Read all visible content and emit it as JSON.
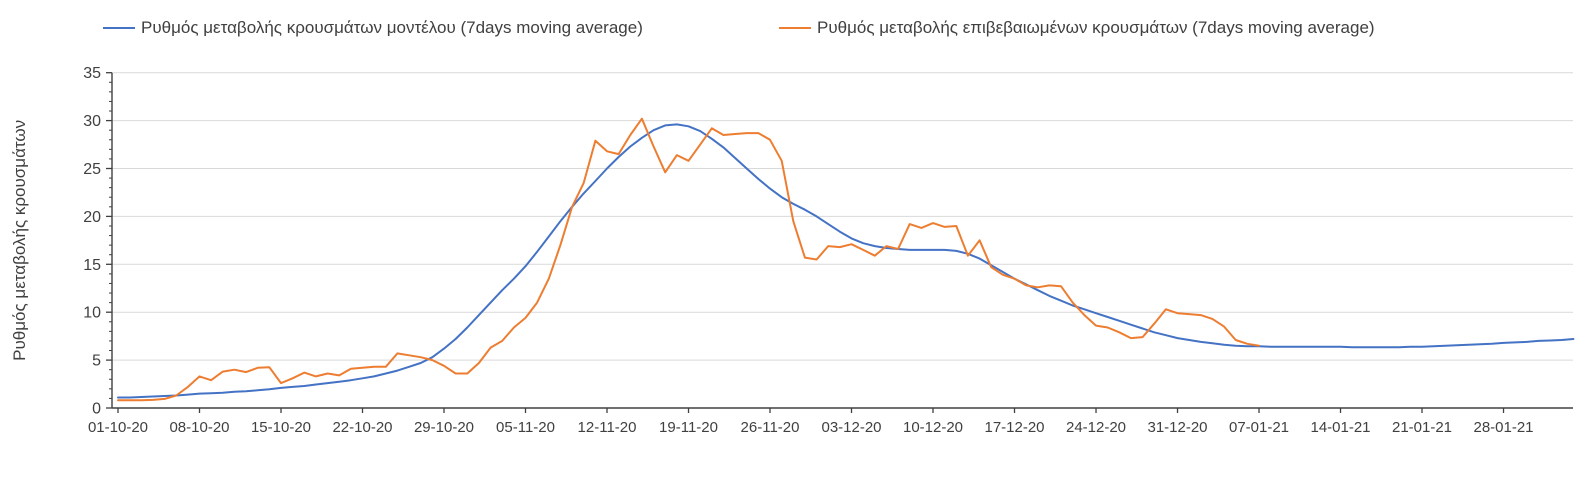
{
  "colors": {
    "background": "#FFFFFF",
    "axis": "#404040",
    "grid": "#D9D9D9",
    "text": "#404040",
    "model_line": "#4472C4",
    "confirmed_line": "#ED7D31"
  },
  "chart_data": {
    "type": "line",
    "title": "",
    "xlabel": "",
    "ylabel": "Ρυθμός μεταβολής κρουσμάτων",
    "ylim": [
      0,
      35
    ],
    "y_ticks": [
      0,
      5,
      10,
      15,
      20,
      25,
      30,
      35
    ],
    "y_minor_tick_step": 1,
    "grid": "horizontal-major-only",
    "legend_position": "top",
    "x_unit": "daily dates",
    "x_start_label": "01-10-20",
    "x_tick_interval_days": 7,
    "x_tick_labels": [
      "01-10-20",
      "08-10-20",
      "15-10-20",
      "22-10-20",
      "29-10-20",
      "05-11-20",
      "12-11-20",
      "19-11-20",
      "26-11-20",
      "03-12-20",
      "10-12-20",
      "17-12-20",
      "24-12-20",
      "31-12-20",
      "07-01-21",
      "14-01-21",
      "21-01-21",
      "28-01-21"
    ],
    "series": [
      {
        "name": "Ρυθμός μεταβολής κρουσμάτων μοντέλου (7days moving average)",
        "color": "#4472C4",
        "start_date": "01-10-20",
        "end_date": "03-02-21",
        "values": [
          1.1,
          1.1,
          1.15,
          1.2,
          1.25,
          1.3,
          1.4,
          1.5,
          1.55,
          1.6,
          1.7,
          1.75,
          1.85,
          1.95,
          2.1,
          2.2,
          2.3,
          2.45,
          2.6,
          2.75,
          2.9,
          3.1,
          3.3,
          3.6,
          3.9,
          4.3,
          4.7,
          5.3,
          6.2,
          7.2,
          8.4,
          9.7,
          11.0,
          12.3,
          13.5,
          14.8,
          16.3,
          17.9,
          19.5,
          21.0,
          22.4,
          23.7,
          25.0,
          26.2,
          27.3,
          28.2,
          29.0,
          29.5,
          29.6,
          29.4,
          28.9,
          28.1,
          27.2,
          26.1,
          25.0,
          23.9,
          22.9,
          22.0,
          21.3,
          20.7,
          20.0,
          19.2,
          18.4,
          17.7,
          17.2,
          16.9,
          16.7,
          16.6,
          16.5,
          16.5,
          16.5,
          16.5,
          16.4,
          16.1,
          15.6,
          14.9,
          14.2,
          13.5,
          12.9,
          12.3,
          11.7,
          11.2,
          10.7,
          10.3,
          9.9,
          9.5,
          9.1,
          8.7,
          8.3,
          7.9,
          7.6,
          7.3,
          7.1,
          6.9,
          6.75,
          6.6,
          6.5,
          6.45,
          6.45,
          6.4,
          6.4,
          6.4,
          6.4,
          6.4,
          6.4,
          6.4,
          6.35,
          6.35,
          6.35,
          6.35,
          6.35,
          6.4,
          6.4,
          6.45,
          6.5,
          6.55,
          6.6,
          6.65,
          6.7,
          6.8,
          6.85,
          6.9,
          7.0,
          7.05,
          7.1,
          7.2
        ]
      },
      {
        "name": "Ρυθμός μεταβολής επιβεβαιωμένων κρουσμάτων (7days moving average)",
        "color": "#ED7D31",
        "start_date": "01-10-20",
        "end_date": "07-01-21",
        "values": [
          0.8,
          0.8,
          0.8,
          0.85,
          0.95,
          1.3,
          2.2,
          3.3,
          2.9,
          3.8,
          4.0,
          3.75,
          4.2,
          4.25,
          2.6,
          3.1,
          3.7,
          3.3,
          3.6,
          3.4,
          4.1,
          4.2,
          4.3,
          4.3,
          5.7,
          5.5,
          5.3,
          5.0,
          4.4,
          3.6,
          3.6,
          4.7,
          6.3,
          7.0,
          8.4,
          9.4,
          11.0,
          13.5,
          17.0,
          21.0,
          23.5,
          27.9,
          26.8,
          26.5,
          28.5,
          30.2,
          27.3,
          24.6,
          26.4,
          25.8,
          27.5,
          29.2,
          28.5,
          28.6,
          28.7,
          28.7,
          28.0,
          25.8,
          19.5,
          15.7,
          15.5,
          16.9,
          16.8,
          17.1,
          16.5,
          15.9,
          16.9,
          16.6,
          19.2,
          18.8,
          19.3,
          18.9,
          19.0,
          15.9,
          17.5,
          14.7,
          13.9,
          13.5,
          12.8,
          12.6,
          12.8,
          12.7,
          11.0,
          9.7,
          8.6,
          8.4,
          7.9,
          7.3,
          7.4,
          8.8,
          10.3,
          9.9,
          9.8,
          9.7,
          9.3,
          8.5,
          7.1,
          6.7,
          6.5
        ]
      }
    ]
  }
}
